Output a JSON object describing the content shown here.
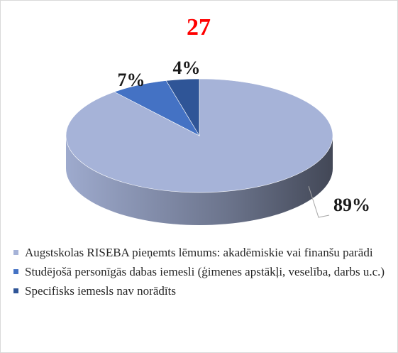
{
  "chart_data": {
    "type": "pie",
    "title": "27",
    "categories": [
      "Augstskolas RISEBA pieņemts lēmums: akadēmiskie vai finanšu parādi",
      "Studējošā personīgās dabas iemesli (ģimenes apstākļi, veselība, darbs u.c.)",
      "Specifisks iemesls nav norādīts"
    ],
    "values": [
      89,
      7,
      4
    ],
    "value_labels": [
      "89%",
      "7%",
      "4%"
    ],
    "colors": [
      "#a6b3d8",
      "#4472c4",
      "#2f5597"
    ],
    "legend": "bottom"
  }
}
